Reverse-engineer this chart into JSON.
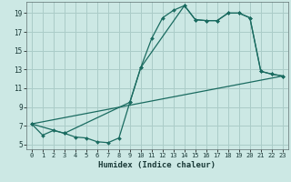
{
  "xlabel": "Humidex (Indice chaleur)",
  "background_color": "#cce8e4",
  "grid_color": "#aaccc8",
  "line_color": "#1a6b60",
  "xlim": [
    -0.5,
    23.5
  ],
  "ylim": [
    4.5,
    20.2
  ],
  "xticks": [
    0,
    1,
    2,
    3,
    4,
    5,
    6,
    7,
    8,
    9,
    10,
    11,
    12,
    13,
    14,
    15,
    16,
    17,
    18,
    19,
    20,
    21,
    22,
    23
  ],
  "yticks": [
    5,
    7,
    9,
    11,
    13,
    15,
    17,
    19
  ],
  "line1_x": [
    0,
    1,
    2,
    3,
    4,
    5,
    6,
    7,
    8,
    9,
    10,
    11,
    12,
    13,
    14,
    15,
    16,
    17,
    18,
    19,
    20,
    21,
    22,
    23
  ],
  "line1_y": [
    7.2,
    6.0,
    6.5,
    6.2,
    5.8,
    5.7,
    5.3,
    5.2,
    5.7,
    9.5,
    13.2,
    16.3,
    18.5,
    19.3,
    19.8,
    18.3,
    18.2,
    18.2,
    19.0,
    19.0,
    18.5,
    12.8,
    12.5,
    12.3
  ],
  "line2_x": [
    0,
    3,
    9,
    10,
    14,
    15,
    16,
    17,
    18,
    19,
    20,
    21,
    22,
    23
  ],
  "line2_y": [
    7.2,
    6.2,
    9.5,
    13.2,
    19.8,
    18.3,
    18.2,
    18.2,
    19.0,
    19.0,
    18.5,
    12.8,
    12.5,
    12.3
  ],
  "line3_x": [
    0,
    23
  ],
  "line3_y": [
    7.2,
    12.3
  ]
}
